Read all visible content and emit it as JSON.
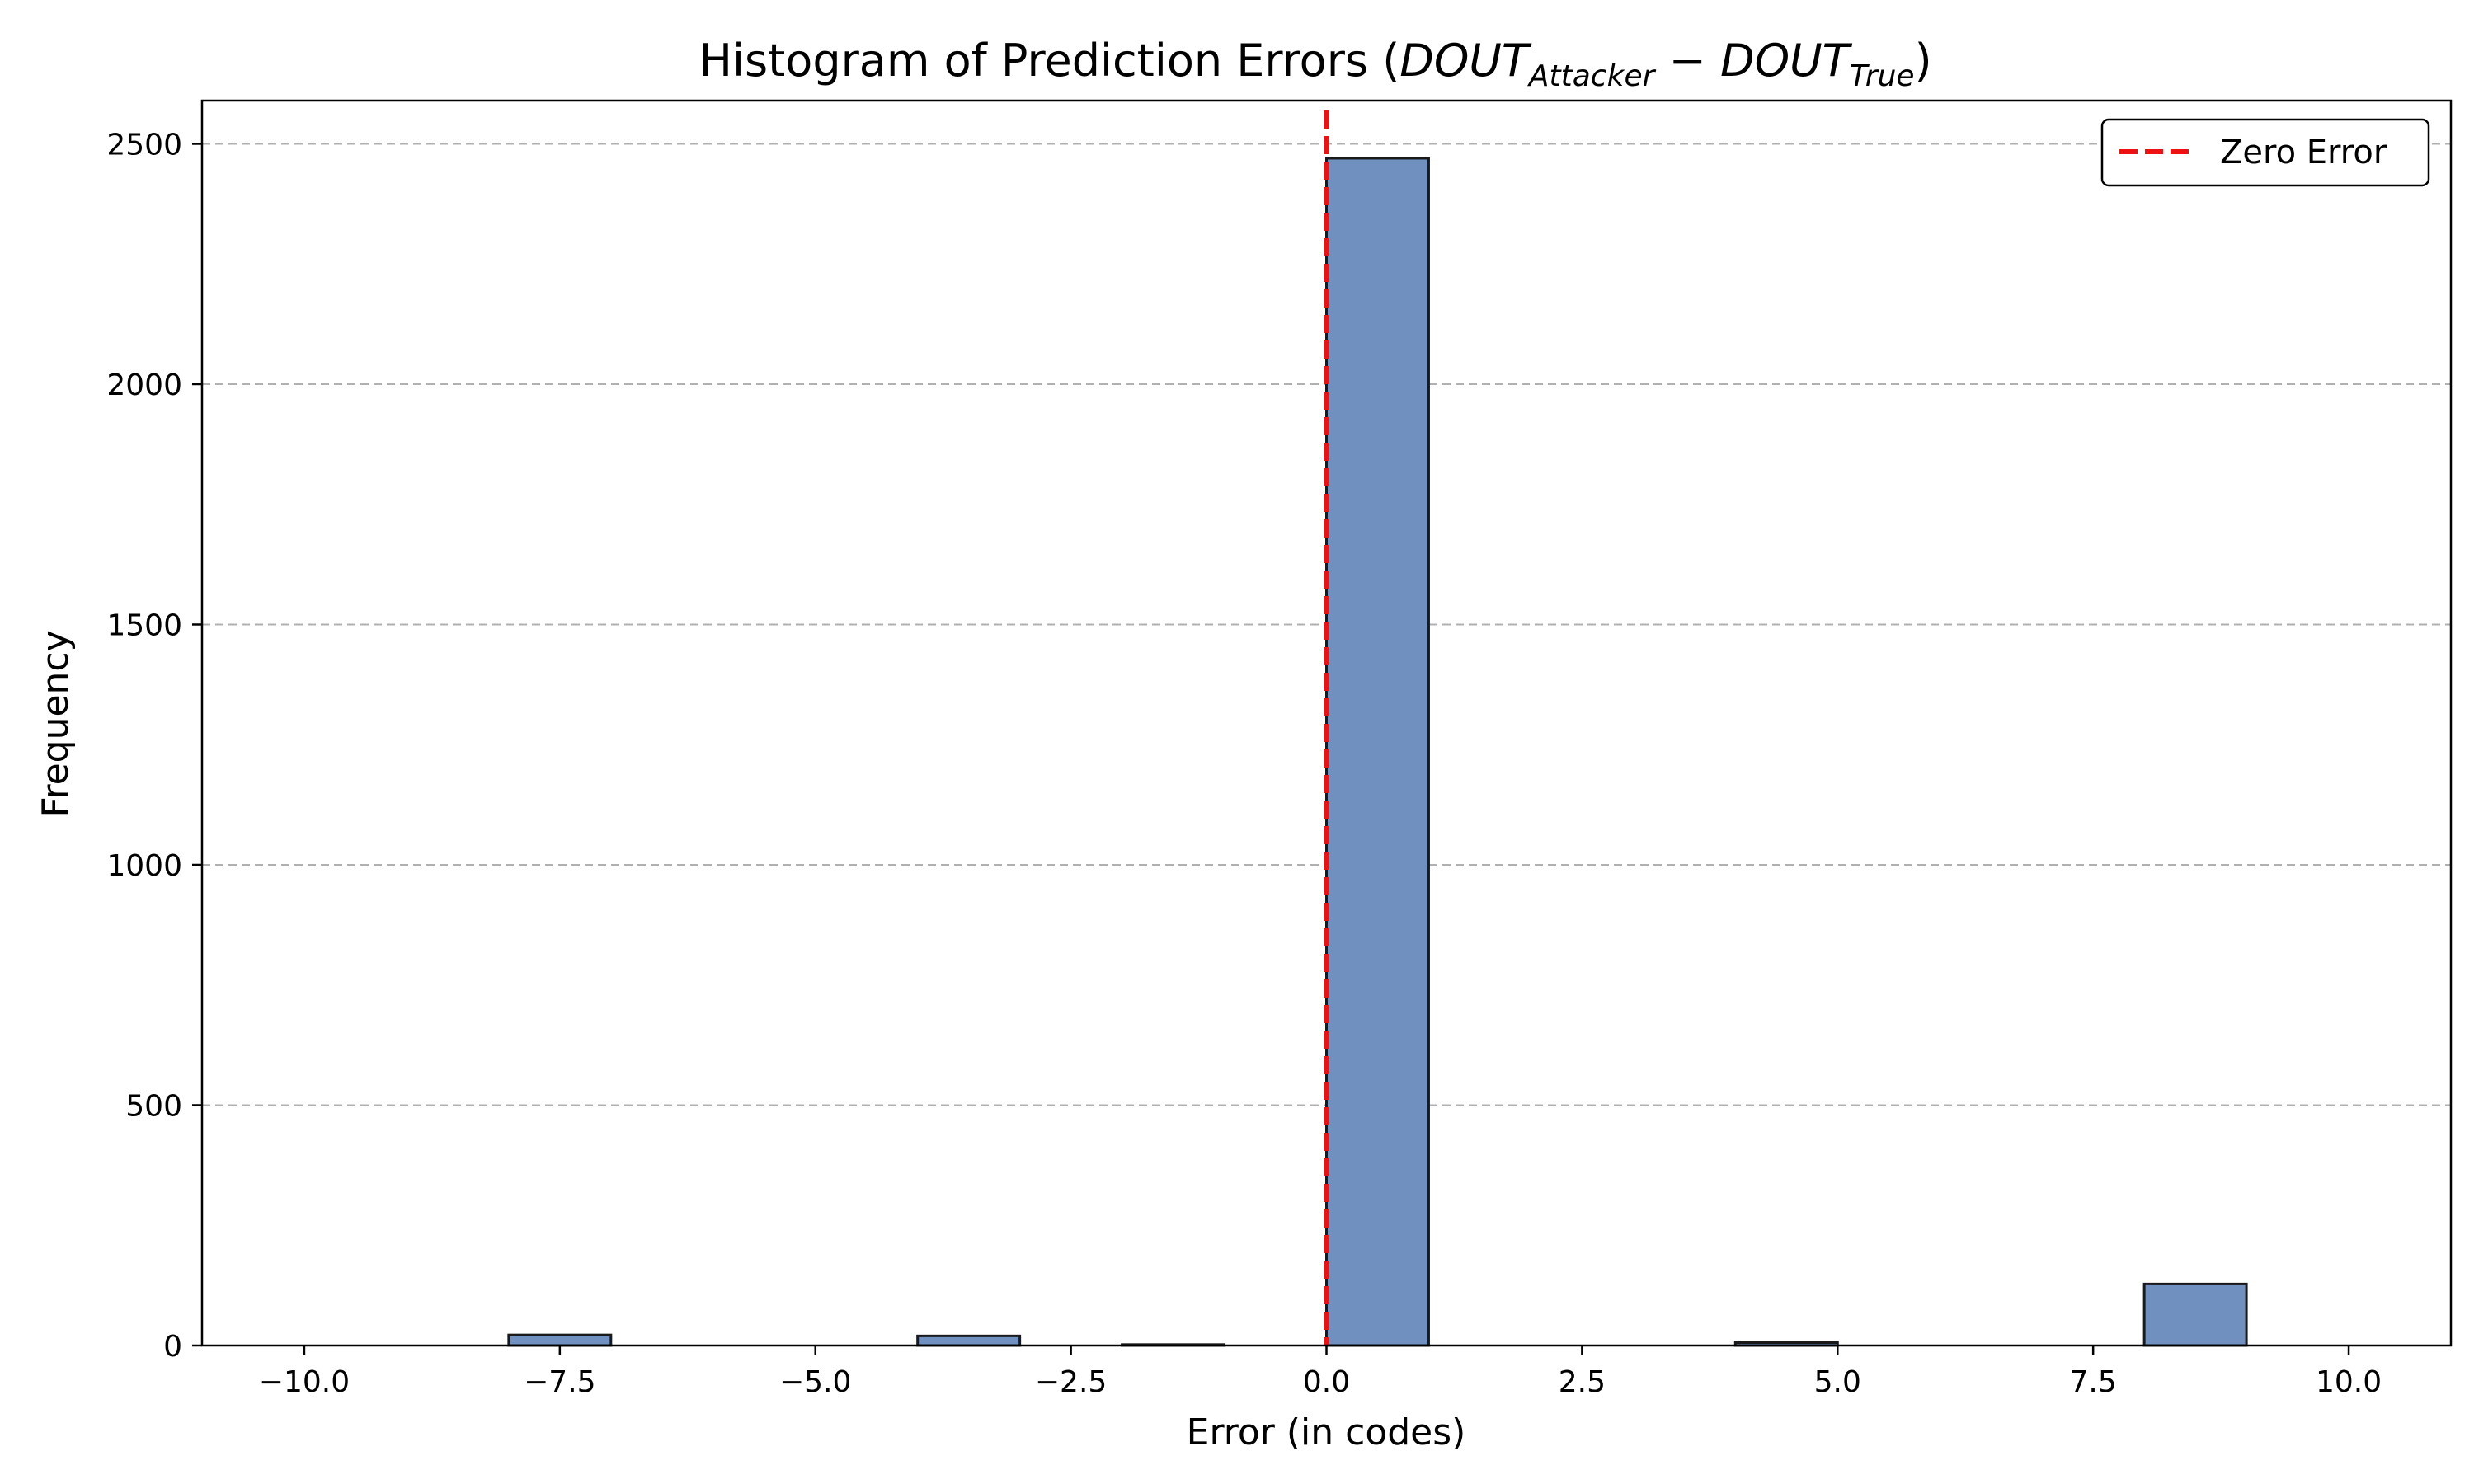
{
  "chart_data": {
    "type": "bar",
    "title": {
      "prefix": "Histogram of Prediction Errors (",
      "term1": "DOUT",
      "sub1": "Attacker",
      "minus": " − ",
      "term2": "DOUT",
      "sub2": "True",
      "suffix": ")"
    },
    "xlabel": "Error (in codes)",
    "ylabel": "Frequency",
    "xlim": [
      -11,
      11
    ],
    "ylim": [
      0,
      2590
    ],
    "xticks": [
      -10,
      -7.5,
      -5,
      -2.5,
      0,
      2.5,
      5,
      7.5,
      10
    ],
    "xtick_labels": [
      "−10.0",
      "−7.5",
      "−5.0",
      "−2.5",
      "0.0",
      "2.5",
      "5.0",
      "7.5",
      "10.0"
    ],
    "yticks": [
      0,
      500,
      1000,
      1500,
      2000,
      2500
    ],
    "ytick_labels": [
      "0",
      "500",
      "1000",
      "1500",
      "2000",
      "2500"
    ],
    "grid": "y-dashed",
    "bins": [
      {
        "start": -10,
        "end": -9,
        "count": 0
      },
      {
        "start": -9,
        "end": -8,
        "count": 0
      },
      {
        "start": -8,
        "end": -7,
        "count": 22
      },
      {
        "start": -7,
        "end": -6,
        "count": 0
      },
      {
        "start": -6,
        "end": -5,
        "count": 0
      },
      {
        "start": -5,
        "end": -4,
        "count": 0
      },
      {
        "start": -4,
        "end": -3,
        "count": 20
      },
      {
        "start": -3,
        "end": -2,
        "count": 0
      },
      {
        "start": -2,
        "end": -1,
        "count": 2
      },
      {
        "start": -1,
        "end": 0,
        "count": 0
      },
      {
        "start": 0,
        "end": 1,
        "count": 2470
      },
      {
        "start": 1,
        "end": 2,
        "count": 0
      },
      {
        "start": 2,
        "end": 3,
        "count": 0
      },
      {
        "start": 3,
        "end": 4,
        "count": 0
      },
      {
        "start": 4,
        "end": 5,
        "count": 6
      },
      {
        "start": 5,
        "end": 6,
        "count": 0
      },
      {
        "start": 6,
        "end": 7,
        "count": 0
      },
      {
        "start": 7,
        "end": 8,
        "count": 0
      },
      {
        "start": 8,
        "end": 9,
        "count": 128
      },
      {
        "start": 9,
        "end": 10,
        "count": 0
      }
    ],
    "bar_color": "#7090c0",
    "bar_edge_color": "#1a1a1a",
    "reference_line": {
      "x": 0,
      "label": "Zero Error",
      "color": "#ee1111",
      "style": "dashed"
    },
    "legend": {
      "position": "top-right",
      "entries": [
        "Zero Error"
      ]
    }
  }
}
